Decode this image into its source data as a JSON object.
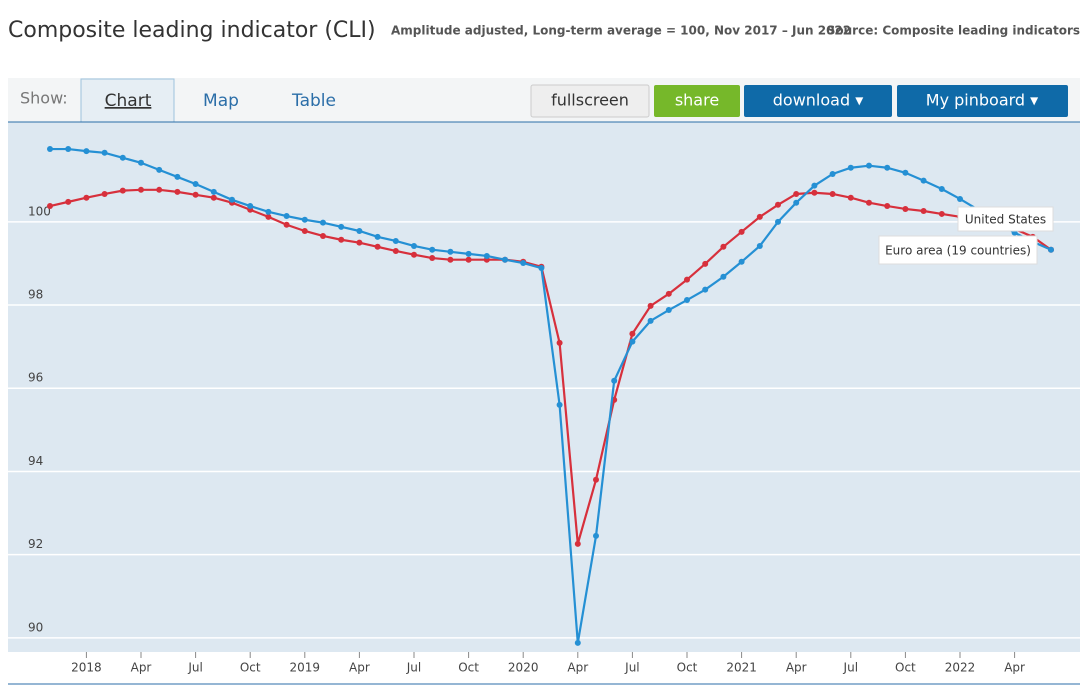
{
  "chart_data": {
    "type": "line",
    "title": "Composite leading indicator (CLI)",
    "subtitle": "Amplitude adjusted, Long-term average = 100, Nov 2017 – Jun 2022",
    "source": "Source: Composite leading indicators",
    "categories": [
      null,
      null,
      "2018",
      null,
      null,
      "Apr",
      null,
      null,
      "Jul",
      null,
      null,
      "Oct",
      null,
      null,
      "2019",
      null,
      null,
      "Apr",
      null,
      null,
      "Jul",
      null,
      null,
      "Oct",
      null,
      null,
      "2020",
      null,
      null,
      "Apr",
      null,
      null,
      "Jul",
      null,
      null,
      "Oct",
      null,
      null,
      "2021",
      null,
      null,
      "Apr",
      null,
      null,
      "Jul",
      null,
      null,
      "Oct",
      null,
      null,
      "2022",
      null,
      null,
      "Apr",
      null,
      null
    ],
    "series": [
      {
        "name": "United States",
        "color": "#2590d4",
        "values": [
          101.75,
          101.75,
          101.7,
          101.66,
          101.54,
          101.42,
          101.25,
          101.08,
          100.91,
          100.72,
          100.53,
          100.38,
          100.24,
          100.14,
          100.05,
          99.98,
          99.88,
          99.78,
          99.64,
          99.54,
          99.42,
          99.33,
          99.28,
          99.23,
          99.18,
          99.09,
          99.01,
          98.89,
          95.6,
          89.88,
          92.45,
          96.18,
          97.12,
          97.62,
          97.88,
          98.12,
          98.37,
          98.68,
          99.04,
          99.42,
          100.0,
          100.46,
          100.87,
          101.15,
          101.3,
          101.35,
          101.3,
          101.18,
          100.99,
          100.79,
          100.55,
          100.29,
          100.0,
          99.74,
          99.52,
          99.33
        ]
      },
      {
        "name": "Euro area (19 countries)",
        "color": "#d7303c",
        "values": [
          100.38,
          100.48,
          100.58,
          100.67,
          100.75,
          100.77,
          100.77,
          100.72,
          100.65,
          100.58,
          100.46,
          100.29,
          100.12,
          99.93,
          99.78,
          99.66,
          99.57,
          99.5,
          99.4,
          99.3,
          99.21,
          99.13,
          99.09,
          99.09,
          99.09,
          99.09,
          99.04,
          98.92,
          97.09,
          92.26,
          93.8,
          95.72,
          97.31,
          97.98,
          98.27,
          98.61,
          98.99,
          99.4,
          99.76,
          100.12,
          100.41,
          100.67,
          100.7,
          100.67,
          100.58,
          100.46,
          100.38,
          100.31,
          100.26,
          100.19,
          100.12,
          100.05,
          99.95,
          99.83,
          99.64,
          99.33
        ]
      }
    ],
    "ylim": [
      89.66,
      102.4
    ],
    "yticks": [
      90,
      92,
      94,
      96,
      98,
      100
    ],
    "grid": true
  },
  "toolbar": {
    "show": "Show:",
    "tabs": [
      "Chart",
      "Map",
      "Table"
    ],
    "buttons": [
      "fullscreen",
      "share",
      "download ▾",
      "My pinboard ▾"
    ]
  }
}
